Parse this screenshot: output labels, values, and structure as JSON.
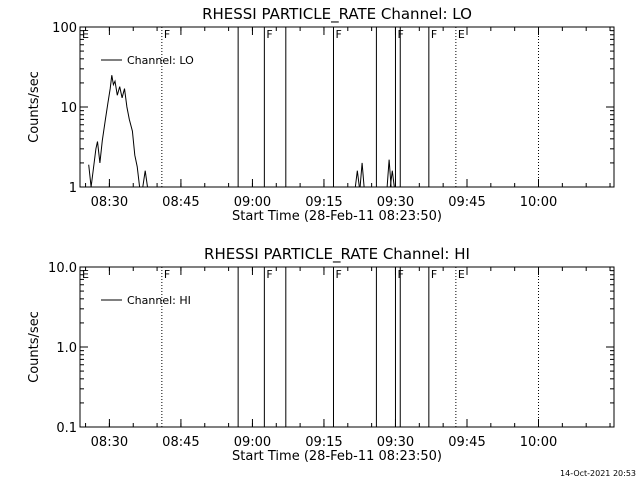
{
  "footer": {
    "timestamp": "14-Oct-2021 20:53"
  },
  "chart_data": [
    {
      "type": "line",
      "title": "RHESSI PARTICLE_RATE Channel: LO",
      "xlabel": "Start Time (28-Feb-11 08:23:50)",
      "ylabel": "Counts/sec",
      "yscale": "log",
      "ylim": [
        1,
        100
      ],
      "yticks": [
        "1",
        "10",
        "100"
      ],
      "xlim_minutes_after_0823_50": [
        0,
        112
      ],
      "xticks": [
        "08:30",
        "08:45",
        "09:00",
        "09:15",
        "09:30",
        "09:45",
        "10:00"
      ],
      "legend": {
        "entry": "Channel: LO",
        "position": "top-left"
      },
      "series": [
        {
          "name": "Channel: LO",
          "points": [
            {
              "t": "08:25:40",
              "y": 1.9
            },
            {
              "t": "08:26:10",
              "y": 1.0
            },
            {
              "t": "08:27:10",
              "y": 3.0
            },
            {
              "t": "08:27:30",
              "y": 3.7
            },
            {
              "t": "08:28:00",
              "y": 2.0
            },
            {
              "t": "08:28:30",
              "y": 3.8
            },
            {
              "t": "08:29:10",
              "y": 7.0
            },
            {
              "t": "08:29:40",
              "y": 11.0
            },
            {
              "t": "08:30:10",
              "y": 17.0
            },
            {
              "t": "08:30:30",
              "y": 25.0
            },
            {
              "t": "08:30:50",
              "y": 19.0
            },
            {
              "t": "08:31:10",
              "y": 21.0
            },
            {
              "t": "08:31:40",
              "y": 14.0
            },
            {
              "t": "08:32:10",
              "y": 18.0
            },
            {
              "t": "08:32:40",
              "y": 13.0
            },
            {
              "t": "08:33:10",
              "y": 17.0
            },
            {
              "t": "08:33:40",
              "y": 10.0
            },
            {
              "t": "08:34:10",
              "y": 7.0
            },
            {
              "t": "08:34:50",
              "y": 5.0
            },
            {
              "t": "08:35:20",
              "y": 2.5
            },
            {
              "t": "08:35:50",
              "y": 1.8
            },
            {
              "t": "08:36:20",
              "y": 1.0
            },
            {
              "t": "08:37:00",
              "y": 1.0
            },
            {
              "t": "08:37:30",
              "y": 1.6
            },
            {
              "t": "08:38:00",
              "y": 1.0
            }
          ],
          "minor_bursts": [
            {
              "t": "09:22:00",
              "y": 1.6
            },
            {
              "t": "09:23:00",
              "y": 2.0
            },
            {
              "t": "09:28:40",
              "y": 2.2
            },
            {
              "t": "09:29:20",
              "y": 1.6
            }
          ]
        }
      ],
      "events": [
        {
          "t": "08:41:00",
          "label": "F",
          "style": "dotted"
        },
        {
          "t": "08:57:00",
          "label": "",
          "style": "solid"
        },
        {
          "t": "09:02:30",
          "label": "F",
          "style": "solid"
        },
        {
          "t": "09:07:00",
          "label": "",
          "style": "solid"
        },
        {
          "t": "09:17:00",
          "label": "F",
          "style": "solid"
        },
        {
          "t": "09:26:00",
          "label": "",
          "style": "solid"
        },
        {
          "t": "09:30:00",
          "label": "F",
          "style": "solid"
        },
        {
          "t": "09:31:00",
          "label": "",
          "style": "solid"
        },
        {
          "t": "09:37:00",
          "label": "F",
          "style": "solid"
        },
        {
          "t": "09:42:40",
          "label": "E",
          "style": "dotted"
        },
        {
          "t": "10:00:00",
          "label": "",
          "style": "dotted"
        }
      ],
      "start_marker": "E"
    },
    {
      "type": "line",
      "title": "RHESSI PARTICLE_RATE Channel: HI",
      "xlabel": "Start Time (28-Feb-11 08:23:50)",
      "ylabel": "Counts/sec",
      "yscale": "log",
      "ylim": [
        0.1,
        10.0
      ],
      "yticks": [
        "0.1",
        "1.0",
        "10.0"
      ],
      "xlim_minutes_after_0823_50": [
        0,
        112
      ],
      "xticks": [
        "08:30",
        "08:45",
        "09:00",
        "09:15",
        "09:30",
        "09:45",
        "10:00"
      ],
      "legend": {
        "entry": "Channel: HI",
        "position": "top-left"
      },
      "series": [
        {
          "name": "Channel: HI",
          "points": [],
          "minor_bursts": []
        }
      ],
      "events": [
        {
          "t": "08:41:00",
          "label": "F",
          "style": "dotted"
        },
        {
          "t": "08:57:00",
          "label": "",
          "style": "solid"
        },
        {
          "t": "09:02:30",
          "label": "F",
          "style": "solid"
        },
        {
          "t": "09:07:00",
          "label": "",
          "style": "solid"
        },
        {
          "t": "09:17:00",
          "label": "F",
          "style": "solid"
        },
        {
          "t": "09:26:00",
          "label": "",
          "style": "solid"
        },
        {
          "t": "09:30:00",
          "label": "F",
          "style": "solid"
        },
        {
          "t": "09:31:00",
          "label": "",
          "style": "solid"
        },
        {
          "t": "09:37:00",
          "label": "F",
          "style": "solid"
        },
        {
          "t": "09:42:40",
          "label": "E",
          "style": "dotted"
        },
        {
          "t": "10:00:00",
          "label": "",
          "style": "dotted"
        }
      ],
      "start_marker": "E"
    }
  ]
}
